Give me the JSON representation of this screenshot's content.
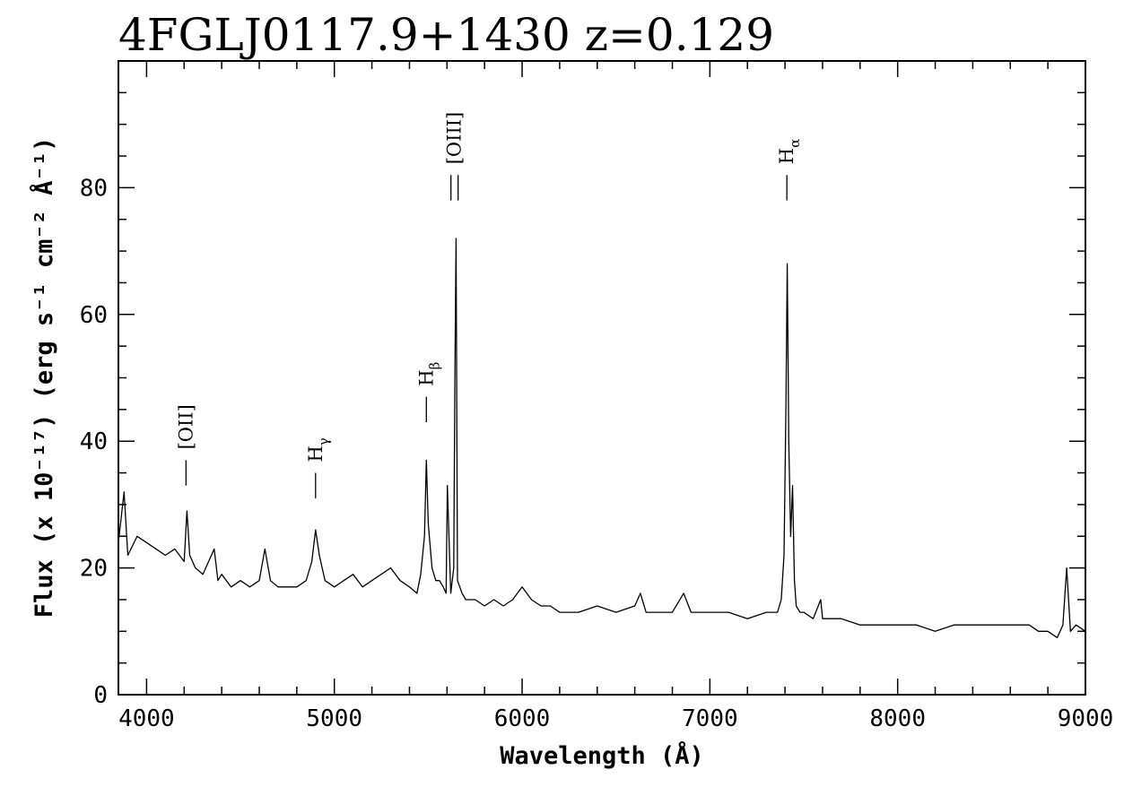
{
  "chart_data": {
    "type": "line",
    "title": "4FGLJ0117.9+1430 z=0.129",
    "xlabel": "Wavelength (Å)",
    "ylabel": "Flux (x 10⁻¹⁷) (erg s⁻¹ cm⁻² Å⁻¹)",
    "xlim": [
      3850,
      9000
    ],
    "ylim": [
      0,
      100
    ],
    "x_ticks": [
      4000,
      5000,
      6000,
      7000,
      8000,
      9000
    ],
    "y_ticks": [
      0,
      20,
      40,
      60,
      80
    ],
    "grid": false,
    "line_labels": [
      {
        "text": "[OII]",
        "wavelength": 4210,
        "flux_top": 37,
        "flux_bottom": 33
      },
      {
        "text": "H",
        "sub": "γ",
        "wavelength": 4900,
        "flux_top": 35,
        "flux_bottom": 31
      },
      {
        "text": "H",
        "sub": "β",
        "wavelength": 5490,
        "flux_top": 47,
        "flux_bottom": 43
      },
      {
        "text": "[OIII]",
        "wavelength": 5640,
        "flux_top": 82,
        "flux_bottom": 78,
        "double": true
      },
      {
        "text": "H",
        "sub": "α",
        "wavelength": 7410,
        "flux_top": 82,
        "flux_bottom": 78
      }
    ],
    "series": [
      {
        "x": [
          3850,
          3880,
          3900,
          3950,
          4000,
          4050,
          4100,
          4150,
          4200,
          4215,
          4230,
          4260,
          4300,
          4360,
          4380,
          4400,
          4450,
          4500,
          4550,
          4600,
          4630,
          4660,
          4700,
          4750,
          4800,
          4850,
          4880,
          4900,
          4920,
          4950,
          5000,
          5050,
          5100,
          5150,
          5200,
          5250,
          5300,
          5350,
          5400,
          5440,
          5460,
          5480,
          5490,
          5500,
          5520,
          5540,
          5560,
          5580,
          5595,
          5602,
          5620,
          5636,
          5642,
          5648,
          5656,
          5680,
          5700,
          5750,
          5800,
          5850,
          5900,
          5950,
          6000,
          6050,
          6100,
          6150,
          6200,
          6300,
          6400,
          6500,
          6600,
          6630,
          6660,
          6700,
          6800,
          6860,
          6900,
          7000,
          7100,
          7200,
          7300,
          7360,
          7380,
          7395,
          7405,
          7412,
          7420,
          7430,
          7440,
          7450,
          7460,
          7480,
          7500,
          7550,
          7590,
          7600,
          7650,
          7700,
          7800,
          7900,
          8000,
          8100,
          8200,
          8300,
          8400,
          8500,
          8600,
          8700,
          8750,
          8800,
          8850,
          8880,
          8900,
          8920,
          8950,
          9000
        ],
        "values": [
          24,
          32,
          22,
          25,
          24,
          23,
          22,
          23,
          21,
          29,
          22,
          20,
          19,
          23,
          18,
          19,
          17,
          18,
          17,
          18,
          23,
          18,
          17,
          17,
          17,
          18,
          21,
          26,
          22,
          18,
          17,
          18,
          19,
          17,
          18,
          19,
          20,
          18,
          17,
          16,
          19,
          25,
          37,
          27,
          20,
          18,
          18,
          17,
          16,
          33,
          16,
          20,
          50,
          72,
          18,
          16,
          15,
          15,
          14,
          15,
          14,
          15,
          17,
          15,
          14,
          14,
          13,
          13,
          14,
          13,
          14,
          16,
          13,
          13,
          13,
          16,
          13,
          13,
          13,
          12,
          13,
          13,
          15,
          22,
          45,
          68,
          40,
          25,
          33,
          18,
          14,
          13,
          13,
          12,
          15,
          12,
          12,
          12,
          11,
          11,
          11,
          11,
          10,
          11,
          11,
          11,
          11,
          11,
          10,
          10,
          9,
          11,
          20,
          10,
          11,
          10
        ]
      }
    ]
  }
}
